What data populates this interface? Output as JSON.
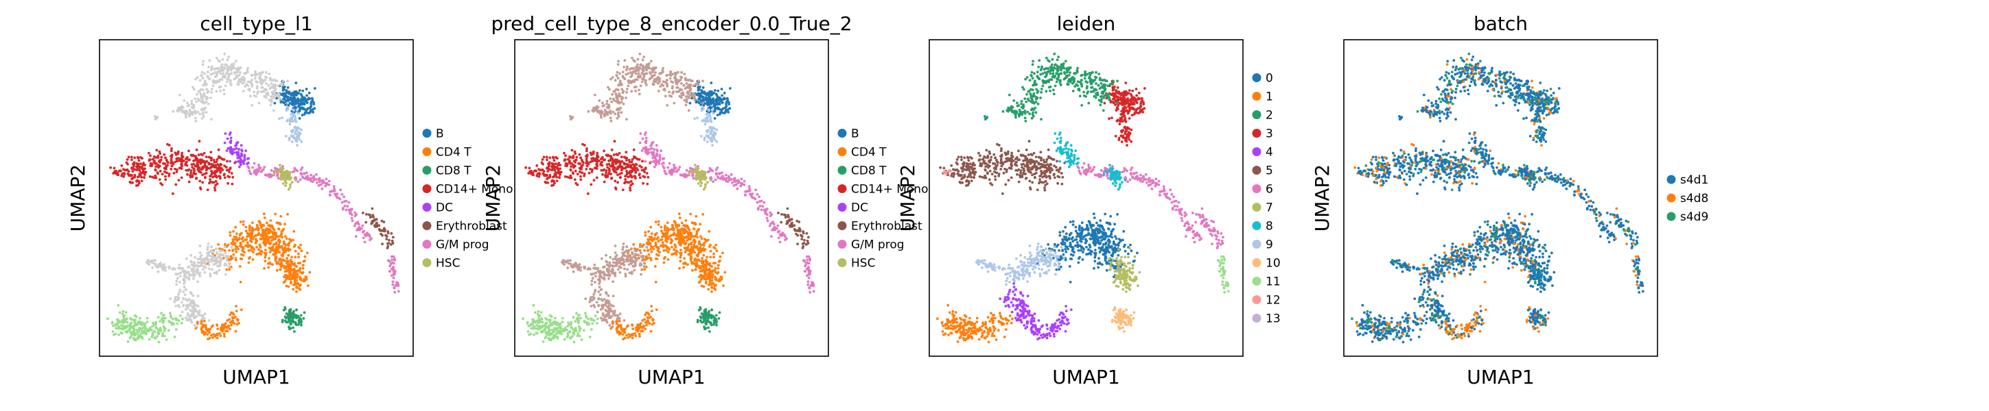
{
  "figure": {
    "panels": [
      {
        "title": "cell_type_l1",
        "xlabel": "UMAP1",
        "ylabel": "UMAP2",
        "legend": "cell_type"
      },
      {
        "title": "pred_cell_type_8_encoder_0.0_True_2",
        "xlabel": "UMAP1",
        "ylabel": "UMAP2",
        "legend": "cell_type"
      },
      {
        "title": "leiden",
        "xlabel": "UMAP1",
        "ylabel": "UMAP2",
        "legend": "leiden"
      },
      {
        "title": "batch",
        "xlabel": "UMAP1",
        "ylabel": "UMAP2",
        "legend": "batch"
      }
    ]
  },
  "chart_data": [
    {
      "type": "scatter",
      "title": "cell_type_l1",
      "xlabel": "UMAP1",
      "ylabel": "UMAP2",
      "grid": false,
      "legend_position": "right",
      "series": [
        {
          "name": "B",
          "color": "#1f77b4"
        },
        {
          "name": "CD4 T",
          "color": "#ff7f0e"
        },
        {
          "name": "CD8 T",
          "color": "#279e68"
        },
        {
          "name": "CD14+ Mono",
          "color": "#d62728"
        },
        {
          "name": "DC",
          "color": "#aa40fc"
        },
        {
          "name": "Erythroblast",
          "color": "#8c564b"
        },
        {
          "name": "G/M prog",
          "color": "#e377c2"
        },
        {
          "name": "HSC",
          "color": "#b5bd61"
        }
      ]
    },
    {
      "type": "scatter",
      "title": "pred_cell_type_8_encoder_0.0_True_2",
      "xlabel": "UMAP1",
      "ylabel": "UMAP2",
      "grid": false,
      "legend_position": "right",
      "series": [
        {
          "name": "B",
          "color": "#1f77b4"
        },
        {
          "name": "CD4 T",
          "color": "#ff7f0e"
        },
        {
          "name": "CD8 T",
          "color": "#279e68"
        },
        {
          "name": "CD14+ Mono",
          "color": "#d62728"
        },
        {
          "name": "DC",
          "color": "#aa40fc"
        },
        {
          "name": "Erythroblast",
          "color": "#8c564b"
        },
        {
          "name": "G/M prog",
          "color": "#e377c2"
        },
        {
          "name": "HSC",
          "color": "#b5bd61"
        }
      ]
    },
    {
      "type": "scatter",
      "title": "leiden",
      "xlabel": "UMAP1",
      "ylabel": "UMAP2",
      "grid": false,
      "legend_position": "right",
      "series": [
        {
          "name": "0",
          "color": "#1f77b4"
        },
        {
          "name": "1",
          "color": "#ff7f0e"
        },
        {
          "name": "2",
          "color": "#279e68"
        },
        {
          "name": "3",
          "color": "#d62728"
        },
        {
          "name": "4",
          "color": "#aa40fc"
        },
        {
          "name": "5",
          "color": "#8c564b"
        },
        {
          "name": "6",
          "color": "#e377c2"
        },
        {
          "name": "7",
          "color": "#b5bd61"
        },
        {
          "name": "8",
          "color": "#17becf"
        },
        {
          "name": "9",
          "color": "#aec7e8"
        },
        {
          "name": "10",
          "color": "#ffbb78"
        },
        {
          "name": "11",
          "color": "#98df8a"
        },
        {
          "name": "12",
          "color": "#ff9896"
        },
        {
          "name": "13",
          "color": "#c5b0d5"
        }
      ]
    },
    {
      "type": "scatter",
      "title": "batch",
      "xlabel": "UMAP1",
      "ylabel": "UMAP2",
      "grid": false,
      "legend_position": "right",
      "series": [
        {
          "name": "s4d1",
          "color": "#1f77b4"
        },
        {
          "name": "s4d8",
          "color": "#ff7f0e"
        },
        {
          "name": "s4d9",
          "color": "#279e68"
        }
      ]
    }
  ]
}
